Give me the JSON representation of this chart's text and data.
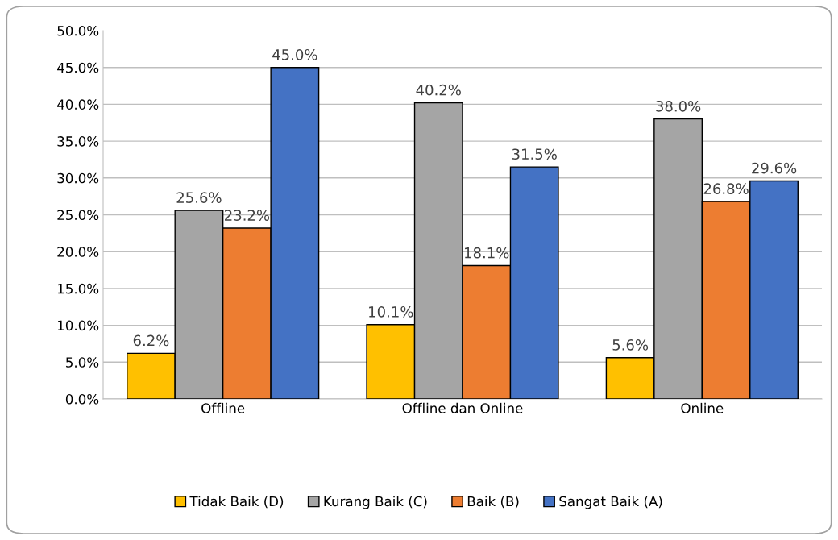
{
  "chart_data": {
    "type": "bar",
    "categories": [
      "Offline",
      "Offline dan Online",
      "Online"
    ],
    "series": [
      {
        "name": "Tidak Baik (D)",
        "color": "#ffc000",
        "values": [
          6.2,
          10.1,
          5.6
        ],
        "value_labels": [
          "6.2%",
          "10.1%",
          "5.6%"
        ]
      },
      {
        "name": "Kurang Baik (C)",
        "color": "#a5a5a5",
        "values": [
          25.6,
          40.2,
          38.0
        ],
        "value_labels": [
          "25.6%",
          "40.2%",
          "38.0%"
        ]
      },
      {
        "name": "Baik (B)",
        "color": "#ed7d31",
        "values": [
          23.2,
          18.1,
          26.8
        ],
        "value_labels": [
          "23.2%",
          "18.1%",
          "26.8%"
        ]
      },
      {
        "name": "Sangat Baik (A)",
        "color": "#4472c4",
        "values": [
          45.0,
          31.5,
          29.6
        ],
        "value_labels": [
          "45.0%",
          "31.5%",
          "29.6%"
        ]
      }
    ],
    "ylim": [
      0,
      50
    ],
    "yticks": [
      {
        "value": 0,
        "label": "0.0%"
      },
      {
        "value": 5,
        "label": "5.0%"
      },
      {
        "value": 10,
        "label": "10.0%"
      },
      {
        "value": 15,
        "label": "15.0%"
      },
      {
        "value": 20,
        "label": "20.0%"
      },
      {
        "value": 25,
        "label": "25.0%"
      },
      {
        "value": 30,
        "label": "30.0%"
      },
      {
        "value": 35,
        "label": "35.0%"
      },
      {
        "value": 40,
        "label": "40.0%"
      },
      {
        "value": 45,
        "label": "45.0%"
      },
      {
        "value": 50,
        "label": "50.0%"
      }
    ],
    "grid": "y",
    "legend": "bottom"
  }
}
